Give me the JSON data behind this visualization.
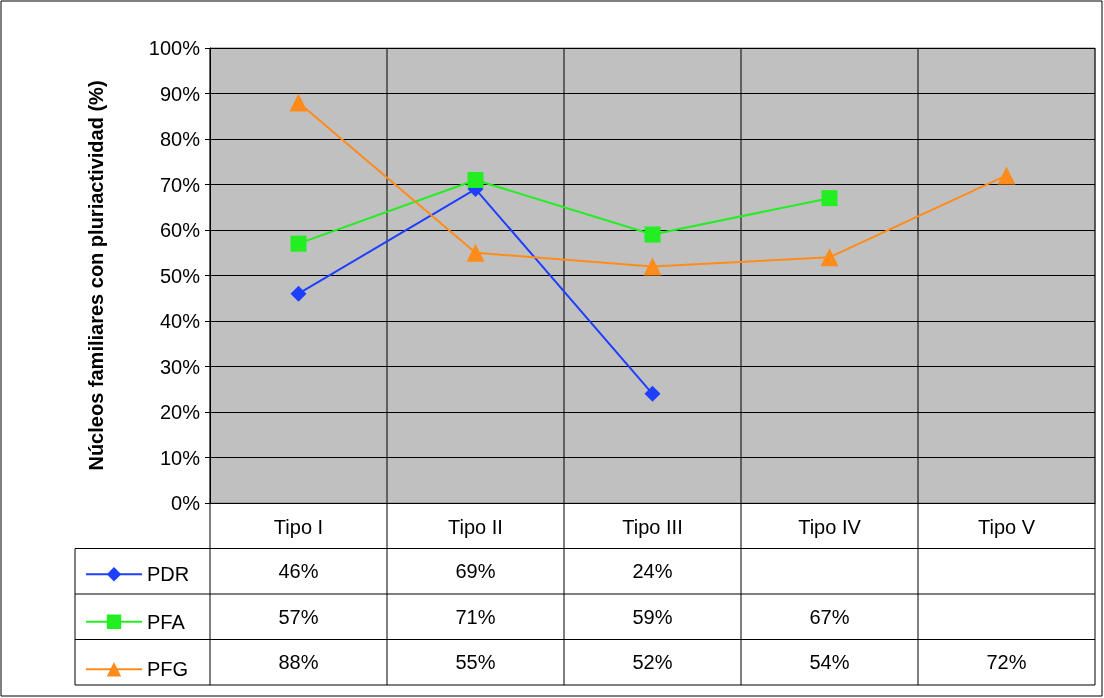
{
  "chart_data": {
    "type": "line",
    "ylabel": "Núcleos familiares con pluriactividad (%)",
    "categories": [
      "Tipo I",
      "Tipo II",
      "Tipo III",
      "Tipo IV",
      "Tipo V"
    ],
    "series": [
      {
        "name": "PDR",
        "color": "#1f3fff",
        "marker": "diamond",
        "values": [
          46,
          69,
          24,
          null,
          null
        ],
        "value_labels": [
          "46%",
          "69%",
          "24%",
          null,
          null
        ]
      },
      {
        "name": "PFA",
        "color": "#22ee22",
        "marker": "square",
        "values": [
          57,
          71,
          59,
          67,
          null
        ],
        "value_labels": [
          "57%",
          "71%",
          "59%",
          "67%",
          null
        ]
      },
      {
        "name": "PFG",
        "color": "#ff8c1a",
        "marker": "triangle",
        "values": [
          88,
          55,
          52,
          54,
          72
        ],
        "value_labels": [
          "88%",
          "55%",
          "52%",
          "54%",
          "72%"
        ]
      }
    ],
    "ylim": [
      0,
      100
    ],
    "yticks": [
      {
        "value": 0,
        "label": "0%"
      },
      {
        "value": 10,
        "label": "10%"
      },
      {
        "value": 20,
        "label": "20%"
      },
      {
        "value": 30,
        "label": "30%"
      },
      {
        "value": 40,
        "label": "40%"
      },
      {
        "value": 50,
        "label": "50%"
      },
      {
        "value": 60,
        "label": "60%"
      },
      {
        "value": 70,
        "label": "70%"
      },
      {
        "value": 80,
        "label": "80%"
      },
      {
        "value": 90,
        "label": "90%"
      },
      {
        "value": 100,
        "label": "100%"
      }
    ],
    "grid": "y",
    "legend": "bottom left"
  }
}
